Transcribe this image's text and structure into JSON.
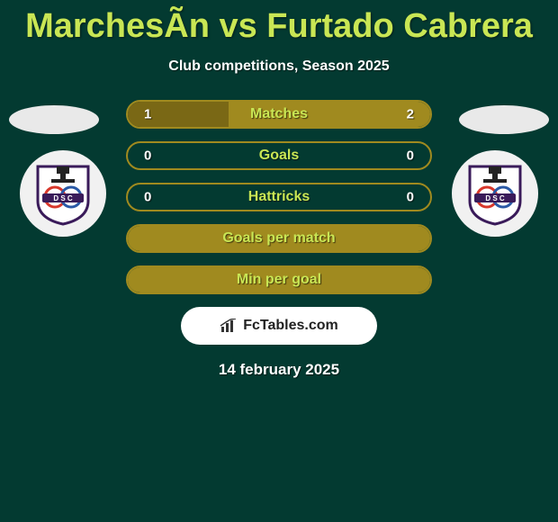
{
  "background_color": "#033a31",
  "accent_color": "#c9e654",
  "text_color": "#ffffff",
  "title": "MarchesÃn vs Furtado Cabrera",
  "subtitle": "Club competitions, Season 2025",
  "player_left": {
    "marker_color": "#e9e9e9",
    "club_badge": "defensor"
  },
  "player_right": {
    "marker_color": "#e9e9e9",
    "club_badge": "defensor"
  },
  "club_badge_defensor": {
    "shield_fill": "#ffffff",
    "shield_stroke": "#3a1b5a",
    "banner_fill": "#3a1b5a",
    "letters": "D S C",
    "ring_red": "#d8382c",
    "ring_blue": "#2b5aa6"
  },
  "stats": [
    {
      "label": "Matches",
      "left_value": "1",
      "right_value": "2",
      "left_pct": 33.33,
      "right_pct": 66.67,
      "border_color": "#a08a1f",
      "left_fill": "#7a6815",
      "right_fill": "#a08a1f"
    },
    {
      "label": "Goals",
      "left_value": "0",
      "right_value": "0",
      "left_pct": 0,
      "right_pct": 0,
      "border_color": "#a08a1f",
      "left_fill": "transparent",
      "right_fill": "transparent"
    },
    {
      "label": "Hattricks",
      "left_value": "0",
      "right_value": "0",
      "left_pct": 0,
      "right_pct": 0,
      "border_color": "#a08a1f",
      "left_fill": "transparent",
      "right_fill": "transparent"
    },
    {
      "label": "Goals per match",
      "left_value": "",
      "right_value": "",
      "left_pct": 100,
      "right_pct": 0,
      "border_color": "#a08a1f",
      "left_fill": "#a08a1f",
      "right_fill": "transparent"
    },
    {
      "label": "Min per goal",
      "left_value": "",
      "right_value": "",
      "left_pct": 100,
      "right_pct": 0,
      "border_color": "#a08a1f",
      "left_fill": "#a08a1f",
      "right_fill": "transparent"
    }
  ],
  "brand": {
    "text": "FcTables.com",
    "bg": "#ffffff",
    "icon_color": "#333333"
  },
  "date": "14 february 2025"
}
